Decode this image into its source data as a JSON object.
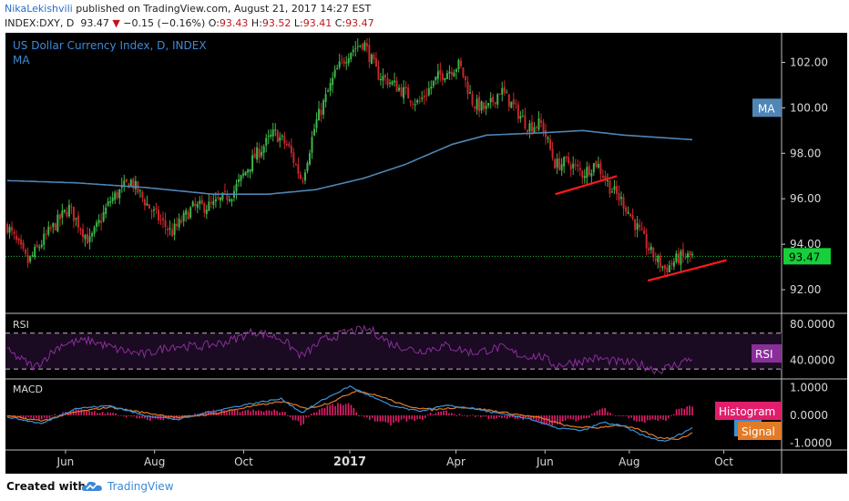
{
  "header": {
    "author": "NikaLekishvili",
    "published": "published on TradingView.com, August 21, 2017 14:27 EST",
    "symbol": "INDEX:DXY, D",
    "price": "93.47",
    "change": "−0.15 (−0.16%)",
    "o_label": "O:",
    "o_value": "93.43",
    "h_label": "H:",
    "h_value": "93.52",
    "l_label": "L:",
    "l_value": "93.41",
    "c_label": "C:",
    "c_value": "93.47"
  },
  "footer": {
    "created_with": "Created with",
    "brand": "TradingView"
  },
  "chart_data": {
    "type": "line",
    "title": "US Dollar Currency Index, D, INDEX",
    "subtitle": "MA",
    "colors": {
      "background": "#000000",
      "up": "#3fb54a",
      "down": "#c8262c",
      "ma": "#4e86b5",
      "rsi": "#8a2f9a",
      "macd": "#3a92d8",
      "signal": "#e37a25",
      "histogram": "#e01e6b",
      "trendline": "#ff1a1a",
      "last_price": "#15d03a",
      "axis_text": "#d8d8d8"
    },
    "price_panel": {
      "ylim": [
        91,
        103.3
      ],
      "ticks": [
        "92.00",
        "94.00",
        "96.00",
        "98.00",
        "100.00",
        "102.00"
      ],
      "tick_values": [
        92,
        94,
        96,
        98,
        100,
        102
      ],
      "last_price_label": "93.47",
      "last_price": 93.47,
      "ma_label": "MA",
      "ma_anchor": [
        [
          0,
          96.8
        ],
        [
          0.1,
          96.7
        ],
        [
          0.2,
          96.5
        ],
        [
          0.3,
          96.2
        ],
        [
          0.38,
          96.2
        ],
        [
          0.45,
          96.4
        ],
        [
          0.52,
          96.9
        ],
        [
          0.58,
          97.5
        ],
        [
          0.65,
          98.4
        ],
        [
          0.7,
          98.8
        ],
        [
          0.78,
          98.9
        ],
        [
          0.84,
          99.0
        ],
        [
          0.9,
          98.8
        ],
        [
          1.0,
          98.6
        ]
      ],
      "price_anchor": [
        [
          0,
          94.8
        ],
        [
          0.03,
          93.2
        ],
        [
          0.06,
          94.5
        ],
        [
          0.09,
          95.6
        ],
        [
          0.12,
          94.1
        ],
        [
          0.15,
          95.9
        ],
        [
          0.18,
          96.8
        ],
        [
          0.21,
          95.5
        ],
        [
          0.24,
          94.5
        ],
        [
          0.27,
          95.6
        ],
        [
          0.3,
          95.7
        ],
        [
          0.33,
          96.3
        ],
        [
          0.36,
          97.8
        ],
        [
          0.39,
          98.9
        ],
        [
          0.41,
          98.3
        ],
        [
          0.43,
          96.8
        ],
        [
          0.45,
          99.3
        ],
        [
          0.48,
          101.6
        ],
        [
          0.5,
          102.5
        ],
        [
          0.52,
          102.9
        ],
        [
          0.54,
          101.5
        ],
        [
          0.57,
          100.9
        ],
        [
          0.6,
          100.2
        ],
        [
          0.63,
          101.4
        ],
        [
          0.66,
          101.9
        ],
        [
          0.68,
          100.2
        ],
        [
          0.7,
          99.9
        ],
        [
          0.72,
          100.8
        ],
        [
          0.74,
          100.0
        ],
        [
          0.76,
          99.2
        ],
        [
          0.78,
          99.3
        ],
        [
          0.8,
          97.5
        ],
        [
          0.82,
          97.6
        ],
        [
          0.84,
          97.1
        ],
        [
          0.86,
          97.6
        ],
        [
          0.88,
          96.5
        ],
        [
          0.9,
          95.8
        ],
        [
          0.92,
          94.7
        ],
        [
          0.94,
          93.6
        ],
        [
          0.96,
          92.9
        ],
        [
          0.98,
          93.4
        ],
        [
          1.0,
          93.47
        ]
      ],
      "trendlines": [
        {
          "from": [
            0.8,
            96.2
          ],
          "to": [
            0.89,
            97.0
          ]
        },
        {
          "from": [
            0.935,
            92.4
          ],
          "to": [
            1.05,
            93.3
          ]
        }
      ]
    },
    "rsi_panel": {
      "name": "RSI",
      "ylim": [
        20,
        90
      ],
      "ticks": [
        "80.0000",
        "40.0000"
      ],
      "tick_values": [
        80,
        40
      ],
      "levels": [
        70,
        30
      ],
      "label": "RSI",
      "anchor": [
        [
          0,
          50
        ],
        [
          0.04,
          32
        ],
        [
          0.08,
          58
        ],
        [
          0.12,
          62
        ],
        [
          0.16,
          52
        ],
        [
          0.2,
          46
        ],
        [
          0.24,
          56
        ],
        [
          0.28,
          55
        ],
        [
          0.32,
          60
        ],
        [
          0.36,
          72
        ],
        [
          0.4,
          64
        ],
        [
          0.43,
          44
        ],
        [
          0.46,
          62
        ],
        [
          0.5,
          72
        ],
        [
          0.53,
          74
        ],
        [
          0.56,
          58
        ],
        [
          0.6,
          50
        ],
        [
          0.64,
          56
        ],
        [
          0.68,
          48
        ],
        [
          0.72,
          54
        ],
        [
          0.75,
          45
        ],
        [
          0.78,
          44
        ],
        [
          0.8,
          34
        ],
        [
          0.83,
          38
        ],
        [
          0.86,
          42
        ],
        [
          0.89,
          38
        ],
        [
          0.92,
          36
        ],
        [
          0.95,
          28
        ],
        [
          0.98,
          36
        ],
        [
          1.0,
          43
        ]
      ]
    },
    "macd_panel": {
      "name": "MACD",
      "ylim": [
        -1.25,
        1.25
      ],
      "ticks": [
        "1.0000",
        "0.0000",
        "-1.0000"
      ],
      "tick_values": [
        1,
        0,
        -1
      ],
      "labels": [
        "Histogram",
        "MACD",
        "Signal"
      ],
      "macd_anchor": [
        [
          0,
          -0.05
        ],
        [
          0.05,
          -0.3
        ],
        [
          0.1,
          0.25
        ],
        [
          0.15,
          0.35
        ],
        [
          0.2,
          0.0
        ],
        [
          0.25,
          -0.15
        ],
        [
          0.3,
          0.15
        ],
        [
          0.35,
          0.4
        ],
        [
          0.4,
          0.6
        ],
        [
          0.43,
          0.1
        ],
        [
          0.46,
          0.55
        ],
        [
          0.5,
          1.05
        ],
        [
          0.53,
          0.7
        ],
        [
          0.56,
          0.35
        ],
        [
          0.6,
          0.15
        ],
        [
          0.64,
          0.35
        ],
        [
          0.68,
          0.25
        ],
        [
          0.72,
          0.05
        ],
        [
          0.76,
          -0.1
        ],
        [
          0.8,
          -0.45
        ],
        [
          0.84,
          -0.55
        ],
        [
          0.87,
          -0.25
        ],
        [
          0.9,
          -0.4
        ],
        [
          0.93,
          -0.75
        ],
        [
          0.96,
          -0.95
        ],
        [
          1.0,
          -0.45
        ]
      ],
      "signal_anchor": [
        [
          0,
          -0.02
        ],
        [
          0.05,
          -0.2
        ],
        [
          0.1,
          0.12
        ],
        [
          0.15,
          0.3
        ],
        [
          0.2,
          0.1
        ],
        [
          0.25,
          -0.08
        ],
        [
          0.3,
          0.05
        ],
        [
          0.35,
          0.3
        ],
        [
          0.4,
          0.5
        ],
        [
          0.44,
          0.25
        ],
        [
          0.47,
          0.45
        ],
        [
          0.51,
          0.9
        ],
        [
          0.55,
          0.65
        ],
        [
          0.58,
          0.35
        ],
        [
          0.62,
          0.2
        ],
        [
          0.66,
          0.3
        ],
        [
          0.7,
          0.2
        ],
        [
          0.74,
          0.05
        ],
        [
          0.78,
          -0.1
        ],
        [
          0.82,
          -0.4
        ],
        [
          0.86,
          -0.45
        ],
        [
          0.89,
          -0.35
        ],
        [
          0.92,
          -0.5
        ],
        [
          0.95,
          -0.8
        ],
        [
          0.98,
          -0.85
        ],
        [
          1.0,
          -0.65
        ]
      ]
    },
    "x_axis": {
      "labels": [
        "Jun",
        "Aug",
        "Oct",
        "2017",
        "Apr",
        "Jun",
        "Aug",
        "Oct"
      ],
      "positions": [
        0.085,
        0.215,
        0.345,
        0.5,
        0.655,
        0.785,
        0.908,
        1.046
      ],
      "bold": [
        false,
        false,
        false,
        true,
        false,
        false,
        false,
        false
      ]
    }
  }
}
